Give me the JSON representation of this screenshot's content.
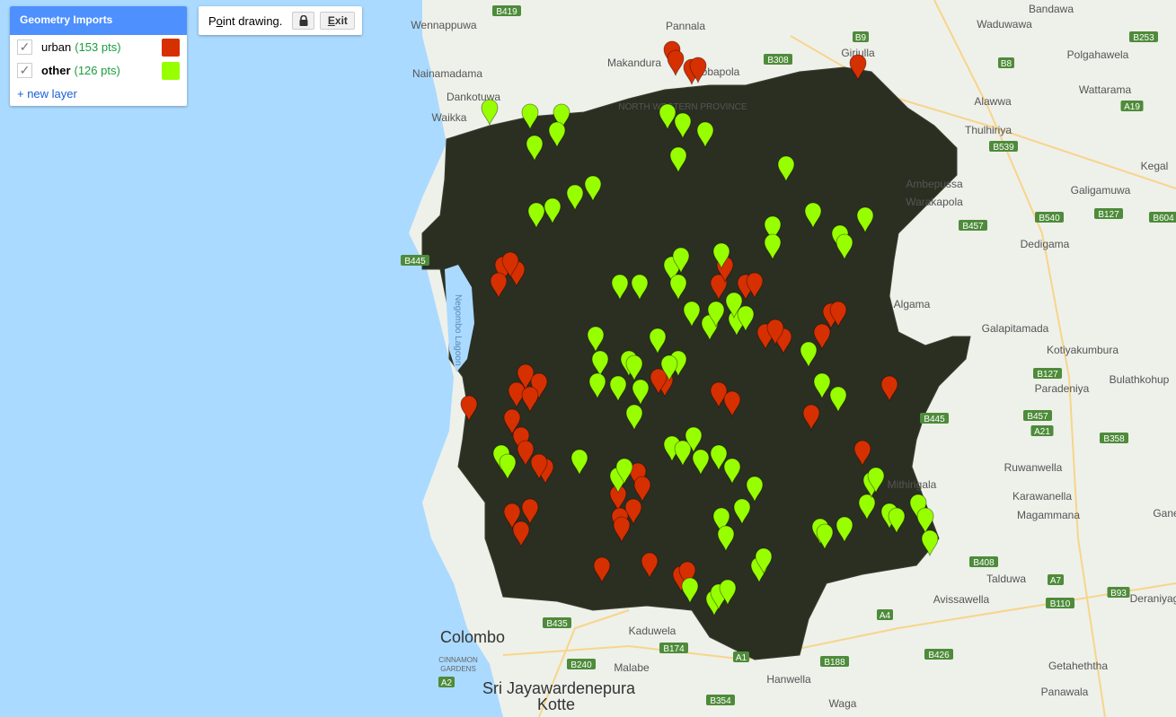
{
  "colors": {
    "urban": "#d63000",
    "other": "#98ff00",
    "water": "#aadaff",
    "land": "#eef0ea",
    "region": "#2b2f22",
    "road_badge": "#4e8b3a",
    "panel_header": "#4d90fe"
  },
  "geometry_imports": {
    "title": "Geometry Imports",
    "layers": [
      {
        "name": "urban",
        "count": "(153 pts)",
        "color": "#d63000",
        "checked": true
      },
      {
        "name": "other",
        "count": "(126 pts)",
        "color": "#98ff00",
        "checked": true
      }
    ],
    "new_layer": "+ new layer"
  },
  "drawing_toolbar": {
    "label_pre": "P",
    "label_u": "o",
    "label_post": "int drawing.",
    "lock_icon": "lock-icon",
    "exit_pre": "",
    "exit_u": "E",
    "exit_post": "xit"
  },
  "map": {
    "places": [
      "Wennappuwa",
      "Bandawa",
      "Waduwawa",
      "Polgahawela",
      "Nainamadama",
      "Pannala",
      "Makandura",
      "Kobapola",
      "Giriulla",
      "Wattarama",
      "Alawwa",
      "Dankotuwa",
      "Waikka",
      "Thulhiriya",
      "Kegal",
      "Ambepussa",
      "Galigamuwa",
      "Warakapola",
      "Dedigama",
      "Algama",
      "Galapitamada",
      "Kotiyakumbura",
      "Paradeniya",
      "Bulathkohup",
      "Ruwanwella",
      "Mithirigala",
      "Karawanella",
      "Magammana",
      "Gane",
      "Talduwa",
      "Avissawella",
      "Deraniyag",
      "Kaduwela",
      "Malabe",
      "Hanwella",
      "Waga",
      "Getaheththa",
      "Panawala",
      "NORTH WESTERN PROVINCE"
    ],
    "cities": [
      "Colombo",
      "Sri Jayawardenepura",
      "Kotte"
    ],
    "districts": [
      "CINNAMON",
      "GARDENS"
    ],
    "water_label": "Negombo Lagoon",
    "roads": [
      "B419",
      "B9",
      "B253",
      "B8",
      "B308",
      "A19",
      "B539",
      "B457",
      "B540",
      "B127",
      "B604",
      "B445",
      "B127",
      "B457",
      "A21",
      "B358",
      "B445",
      "B408",
      "A7",
      "B110",
      "B93",
      "A4",
      "B426",
      "B188",
      "B354",
      "B174",
      "B240",
      "A2",
      "B435",
      "A1"
    ]
  }
}
